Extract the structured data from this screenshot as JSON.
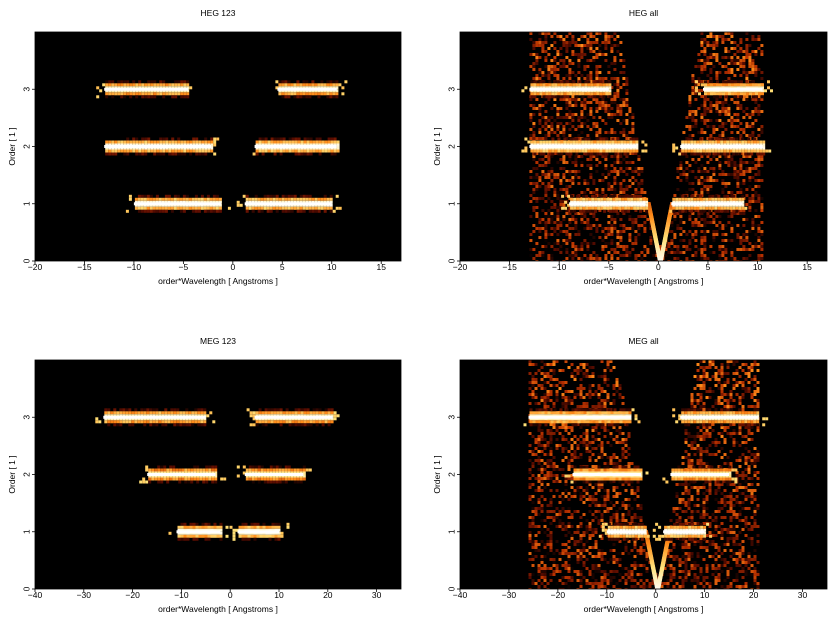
{
  "chart_data": [
    {
      "type": "heatmap",
      "title": "HEG 123",
      "xlabel": "order*Wavelength [ Angstroms ]",
      "ylabel": "Order [ 1 ]",
      "xlim": [
        -20,
        17
      ],
      "ylim": [
        0,
        4
      ],
      "xticks": [
        -20,
        -15,
        -10,
        -5,
        0,
        5,
        10,
        15
      ],
      "yticks": [
        0,
        1,
        2,
        3
      ],
      "colormap": [
        "#000000",
        "#5a0c00",
        "#b83200",
        "#ff8c1a",
        "#ffe27a",
        "#ffffff"
      ],
      "bands": [
        {
          "order": 3,
          "x": [
            -13,
            -4.5
          ],
          "intensity": 0.95
        },
        {
          "order": 3,
          "x": [
            4.5,
            10.5
          ],
          "intensity": 0.95
        },
        {
          "order": 2,
          "x": [
            -13,
            -2.2
          ],
          "intensity": 1.0
        },
        {
          "order": 2,
          "x": [
            2.2,
            10.5
          ],
          "intensity": 1.0
        },
        {
          "order": 1,
          "x": [
            -10,
            -1.2
          ],
          "intensity": 1.0
        },
        {
          "order": 1,
          "x": [
            1.2,
            10
          ],
          "intensity": 1.0
        }
      ],
      "background": "none"
    },
    {
      "type": "heatmap",
      "title": "HEG all",
      "xlabel": "order*Wavelength [ Angstroms ]",
      "ylabel": "Order [ 1 ]",
      "xlim": [
        -20,
        17
      ],
      "ylim": [
        0,
        4
      ],
      "xticks": [
        -20,
        -15,
        -10,
        -5,
        0,
        5,
        10,
        15
      ],
      "yticks": [
        0,
        1,
        2,
        3
      ],
      "colormap": [
        "#000000",
        "#5a0c00",
        "#b83200",
        "#ff8c1a",
        "#ffe27a",
        "#ffffff"
      ],
      "bands": [
        {
          "order": 3,
          "x": [
            -13,
            -5
          ],
          "intensity": 0.95
        },
        {
          "order": 3,
          "x": [
            4.5,
            10.5
          ],
          "intensity": 0.95
        },
        {
          "order": 2,
          "x": [
            -13,
            -2.2
          ],
          "intensity": 1.0
        },
        {
          "order": 2,
          "x": [
            2.2,
            10.5
          ],
          "intensity": 1.0
        },
        {
          "order": 1,
          "x": [
            -9,
            -1.3
          ],
          "intensity": 1.0
        },
        {
          "order": 1,
          "x": [
            1.3,
            8.5
          ],
          "intensity": 1.0
        }
      ],
      "background": "wedge",
      "background_x": [
        -13,
        10.5
      ],
      "zero_order_x": 0
    },
    {
      "type": "heatmap",
      "title": "MEG 123",
      "xlabel": "order*Wavelength [ Angstroms ]",
      "ylabel": "Order [ 1 ]",
      "xlim": [
        -40,
        35
      ],
      "ylim": [
        0,
        4
      ],
      "xticks": [
        -40,
        -30,
        -20,
        -10,
        0,
        10,
        20,
        30
      ],
      "yticks": [
        0,
        1,
        2,
        3
      ],
      "colormap": [
        "#000000",
        "#5a0c00",
        "#b83200",
        "#ff8c1a",
        "#ffe27a",
        "#ffffff"
      ],
      "bands": [
        {
          "order": 3,
          "x": [
            -26,
            -5
          ],
          "intensity": 0.95
        },
        {
          "order": 3,
          "x": [
            5,
            21
          ],
          "intensity": 0.95
        },
        {
          "order": 2,
          "x": [
            -17,
            -3
          ],
          "intensity": 0.9
        },
        {
          "order": 2,
          "x": [
            3,
            15
          ],
          "intensity": 0.9
        },
        {
          "order": 1,
          "x": [
            -11,
            -2
          ],
          "intensity": 1.0
        },
        {
          "order": 1,
          "x": [
            1.5,
            10
          ],
          "intensity": 1.0
        }
      ],
      "background": "none"
    },
    {
      "type": "heatmap",
      "title": "MEG all",
      "xlabel": "order*Wavelength [ Angstroms ]",
      "ylabel": "Order [ 1 ]",
      "xlim": [
        -40,
        35
      ],
      "ylim": [
        0,
        4
      ],
      "xticks": [
        -40,
        -30,
        -20,
        -10,
        0,
        10,
        20,
        30
      ],
      "yticks": [
        0,
        1,
        2,
        3
      ],
      "colormap": [
        "#000000",
        "#5a0c00",
        "#b83200",
        "#ff8c1a",
        "#ffe27a",
        "#ffffff"
      ],
      "bands": [
        {
          "order": 3,
          "x": [
            -26,
            -5
          ],
          "intensity": 0.95
        },
        {
          "order": 3,
          "x": [
            5,
            21
          ],
          "intensity": 0.95
        },
        {
          "order": 2,
          "x": [
            -17,
            -3
          ],
          "intensity": 0.9
        },
        {
          "order": 2,
          "x": [
            3,
            15
          ],
          "intensity": 0.9
        },
        {
          "order": 1,
          "x": [
            -10,
            -2
          ],
          "intensity": 1.0
        },
        {
          "order": 1,
          "x": [
            1.5,
            10
          ],
          "intensity": 1.0
        }
      ],
      "background": "wedge",
      "background_x": [
        -26,
        21
      ],
      "zero_order_x": 0
    }
  ]
}
